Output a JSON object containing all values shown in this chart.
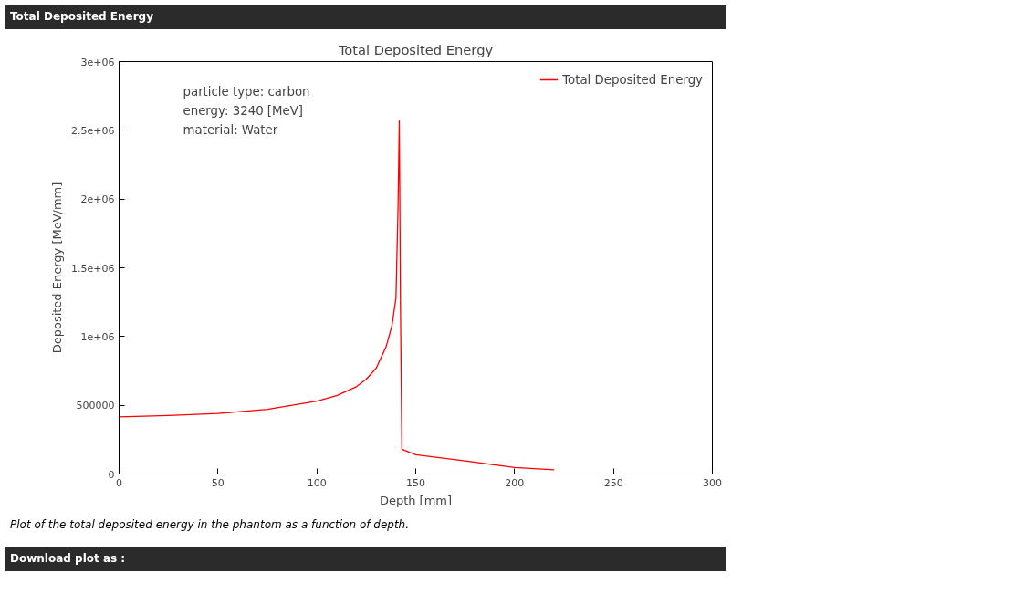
{
  "chart_data": {
    "type": "line",
    "title": "Total Deposited Energy",
    "xlabel": "Depth [mm]",
    "ylabel": "Deposited Energy [MeV/mm]",
    "x": [
      0,
      25,
      50,
      75,
      100,
      110,
      120,
      125,
      130,
      135,
      138,
      140,
      141,
      141.7,
      142.3,
      143,
      150,
      175,
      200,
      220
    ],
    "series": [
      {
        "name": "Total Deposited Energy",
        "color": "#ff0000",
        "values": [
          415000,
          425000,
          440000,
          470000,
          530000,
          570000,
          635000,
          690000,
          770000,
          925000,
          1080000,
          1280000,
          1900000,
          2570000,
          1200000,
          180000,
          140000,
          95000,
          47000,
          31000
        ]
      }
    ],
    "xlim": [
      0,
      300
    ],
    "xticks": [
      0,
      50,
      100,
      150,
      200,
      250,
      300
    ],
    "ylim": [
      0,
      3000000
    ],
    "yticks": [
      {
        "value": 0,
        "label": "0"
      },
      {
        "value": 500000,
        "label": "500000"
      },
      {
        "value": 1000000,
        "label": "1e+06"
      },
      {
        "value": 1500000,
        "label": "1.5e+06"
      },
      {
        "value": 2000000,
        "label": "2e+06"
      },
      {
        "value": 2500000,
        "label": "2.5e+06"
      },
      {
        "value": 3000000,
        "label": "3e+06"
      }
    ],
    "grid": false,
    "legend": "top right",
    "line_style": "solid",
    "marker": "none",
    "annotations": [
      "particle type: carbon\nenergy: 3240 [MeV]\nmaterial: Water",
      "Total Deposited Energy",
      "Plot of the total deposited energy in the phantom as a function of depth.",
      "Download plot as :"
    ]
  }
}
